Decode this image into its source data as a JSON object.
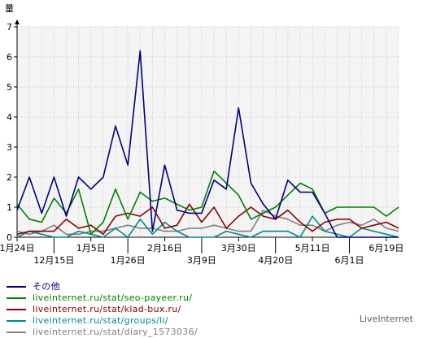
{
  "chart_data": {
    "type": "line",
    "ylabel": "量",
    "ylim": [
      0,
      7
    ],
    "yticks": [
      0,
      1,
      2,
      3,
      4,
      5,
      6,
      7
    ],
    "grid": true,
    "n_points": 32,
    "x_tick_labels_row1": [
      {
        "i": 0,
        "label": "1月24日"
      },
      {
        "i": 6,
        "label": "1月5日"
      },
      {
        "i": 12,
        "label": "2月16日"
      },
      {
        "i": 18,
        "label": "3月30日"
      },
      {
        "i": 24,
        "label": "5月11日"
      },
      {
        "i": 30,
        "label": "6月19日"
      }
    ],
    "x_tick_labels_row2": [
      {
        "i": 3,
        "label": "12月15日"
      },
      {
        "i": 9,
        "label": "1月26日"
      },
      {
        "i": 15,
        "label": "3月9日"
      },
      {
        "i": 21,
        "label": "4月20日"
      },
      {
        "i": 27,
        "label": "6月1日"
      }
    ],
    "series": [
      {
        "name": "その他",
        "color": "#000080",
        "values": [
          0.9,
          2.0,
          0.8,
          2.0,
          0.7,
          2.0,
          1.6,
          2.0,
          3.7,
          2.4,
          6.2,
          0.2,
          2.4,
          0.9,
          0.8,
          0.8,
          1.9,
          1.6,
          4.3,
          1.8,
          1.1,
          0.6,
          1.9,
          1.5,
          1.5,
          0.8,
          0.0,
          0.0,
          0.0,
          0.0,
          0.0,
          0.0
        ]
      },
      {
        "name": "liveinternet.ru/stat/seo-payeer.ru/",
        "color": "#008000",
        "values": [
          1.1,
          0.6,
          0.5,
          1.3,
          0.8,
          1.6,
          0.1,
          0.5,
          1.6,
          0.6,
          1.5,
          1.2,
          1.3,
          1.1,
          0.9,
          1.0,
          2.2,
          1.8,
          1.4,
          0.6,
          0.8,
          1.0,
          1.4,
          1.8,
          1.6,
          0.8,
          1.0,
          1.0,
          1.0,
          1.0,
          0.7,
          1.0
        ]
      },
      {
        "name": "liveinternet.ru/stat/klad-bux.ru/",
        "color": "#8b0000",
        "values": [
          0.1,
          0.2,
          0.2,
          0.2,
          0.6,
          0.3,
          0.4,
          0.1,
          0.7,
          0.8,
          0.7,
          1.0,
          0.3,
          0.4,
          1.1,
          0.5,
          1.0,
          0.3,
          0.7,
          1.0,
          0.7,
          0.6,
          0.9,
          0.5,
          0.2,
          0.5,
          0.6,
          0.6,
          0.3,
          0.4,
          0.5,
          0.3
        ]
      },
      {
        "name": "liveinternet.ru/stat/groups/li/",
        "color": "#008b8b",
        "values": [
          0.0,
          0.2,
          0.1,
          0.0,
          0.0,
          0.2,
          0.1,
          0.0,
          0.3,
          0.0,
          0.6,
          0.1,
          0.5,
          0.2,
          0.0,
          0.0,
          0.0,
          0.2,
          0.1,
          0.0,
          0.2,
          0.2,
          0.2,
          0.0,
          0.7,
          0.2,
          0.1,
          0.0,
          0.3,
          0.2,
          0.1,
          0.0
        ]
      },
      {
        "name": "liveinternet.ru/stat/diary_1573036/",
        "color": "#808080",
        "values": [
          0.2,
          0.1,
          0.2,
          0.4,
          0.1,
          0.1,
          0.2,
          0.2,
          0.3,
          0.4,
          0.3,
          0.3,
          0.2,
          0.2,
          0.3,
          0.3,
          0.4,
          0.3,
          0.2,
          0.2,
          0.9,
          0.7,
          0.6,
          0.4,
          0.4,
          0.2,
          0.4,
          0.5,
          0.4,
          0.6,
          0.3,
          0.2
        ]
      }
    ]
  },
  "footer": {
    "watermark": "LiveInternet"
  }
}
